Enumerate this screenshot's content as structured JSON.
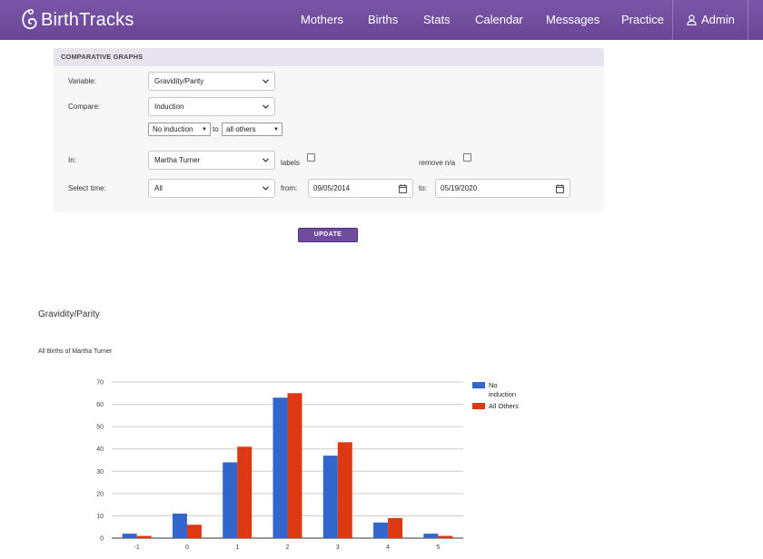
{
  "brand": {
    "name": "BirthTracks",
    "logo_icon": "birthtracks-logo-icon"
  },
  "nav": {
    "items": [
      {
        "label": "Mothers"
      },
      {
        "label": "Births"
      },
      {
        "label": "Stats"
      },
      {
        "label": "Calendar"
      },
      {
        "label": "Messages"
      },
      {
        "label": "Practice"
      }
    ],
    "admin_label": "Admin",
    "admin_icon": "user-icon"
  },
  "panel": {
    "title": "COMPARATIVE GRAPHS",
    "variable_label": "Variable:",
    "variable_value": "Gravidity/Parity",
    "compare_label": "Compare:",
    "compare_value": "Induction",
    "compare_left_value": "No induction",
    "to_label": "to",
    "compare_right_value": "all others",
    "in_label": "In:",
    "in_value": "Martha Turner",
    "labels_label": "labels",
    "labels_checked": false,
    "remove_na_label": "remove n/a",
    "remove_na_checked": false,
    "select_time_label": "Select time:",
    "select_time_value": "All",
    "from_label": "from:",
    "from_date": "09/05/2014",
    "to_date_label": "to:",
    "to_date": "05/19/2020"
  },
  "update_button": "UPDATE",
  "chart_heading": "Gravidity/Parity",
  "chart_subtitle": "All Births of Martha Turner",
  "colors": {
    "nav": "#6f4c9d",
    "series1": "#3366cc",
    "series2": "#dc3912"
  },
  "chart_data": {
    "type": "bar",
    "categories": [
      "-1",
      "0",
      "1",
      "2",
      "3",
      "4",
      "5"
    ],
    "series": [
      {
        "name": "No induction",
        "values": [
          2,
          11,
          34,
          63,
          37,
          7,
          2
        ]
      },
      {
        "name": "All Others",
        "values": [
          1,
          6,
          41,
          65,
          43,
          9,
          1
        ]
      }
    ],
    "yticks": [
      0,
      10,
      20,
      30,
      40,
      50,
      60,
      70
    ],
    "ylim": [
      0,
      70
    ],
    "grid": true,
    "legend": "right"
  }
}
